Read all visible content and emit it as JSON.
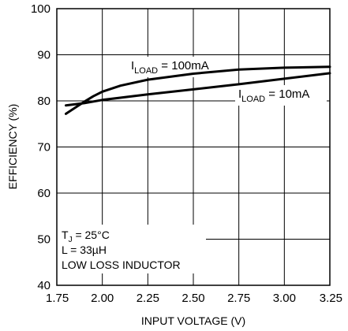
{
  "chart_data": {
    "type": "line",
    "title": "",
    "xlabel": "INPUT VOLTAGE (V)",
    "ylabel": "EFFICIENCY (%)",
    "xlim": [
      1.75,
      3.25
    ],
    "ylim": [
      40,
      100
    ],
    "x_ticks": [
      "1.75",
      "2.00",
      "2.25",
      "2.50",
      "2.75",
      "3.00",
      "3.25"
    ],
    "y_ticks": [
      "40",
      "50",
      "60",
      "70",
      "80",
      "90",
      "100"
    ],
    "grid": true,
    "series": [
      {
        "name_main": "I",
        "name_sub": "LOAD",
        "name_rest": " = 100mA",
        "x": [
          1.8,
          1.85,
          1.9,
          1.95,
          2.0,
          2.1,
          2.25,
          2.5,
          2.75,
          3.0,
          3.25
        ],
        "y": [
          77.2,
          78.5,
          79.8,
          81.0,
          82.0,
          83.3,
          84.6,
          85.9,
          86.8,
          87.2,
          87.4
        ]
      },
      {
        "name_main": "I",
        "name_sub": "LOAD",
        "name_rest": " = 10mA",
        "x": [
          1.8,
          1.9,
          2.0,
          2.25,
          2.5,
          2.75,
          3.0,
          3.25
        ],
        "y": [
          79.0,
          79.5,
          80.2,
          81.4,
          82.5,
          83.6,
          84.8,
          86.0
        ]
      }
    ],
    "annotation": {
      "tj_main": "T",
      "tj_sub": "J",
      "tj_rest": " = 25°C",
      "line2": "L = 33µH",
      "line3": "LOW LOSS INDUCTOR"
    }
  }
}
